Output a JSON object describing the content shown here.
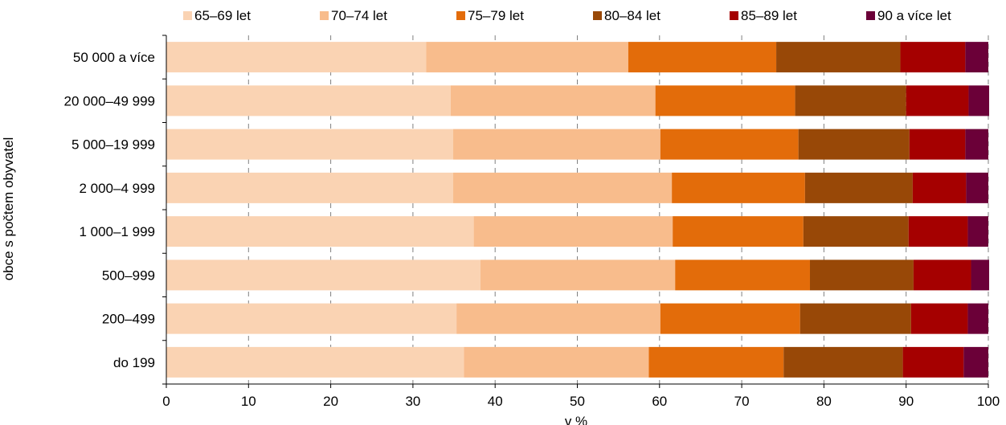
{
  "chart_data": {
    "type": "bar",
    "orientation": "horizontal",
    "stacked": true,
    "title": "",
    "xlabel": "v %",
    "ylabel": "obce s počtem obyvatel",
    "xlim": [
      0,
      100
    ],
    "xticks": [
      0,
      10,
      20,
      30,
      40,
      50,
      60,
      70,
      80,
      90,
      100
    ],
    "grid": "vertical dashed",
    "legend_position": "top",
    "categories": [
      "50 000 a více",
      "20 000–49 999",
      "5 000–19 999",
      "2 000–4 999",
      "1 000–1 999",
      "500–999",
      "200–499",
      "do 199"
    ],
    "series": [
      {
        "name": "65–69 let",
        "color": "#fad3b3",
        "values": [
          31.6,
          34.6,
          34.9,
          34.9,
          37.4,
          38.2,
          35.3,
          36.2
        ]
      },
      {
        "name": "70–74 let",
        "color": "#f8bc8c",
        "values": [
          24.6,
          24.9,
          25.2,
          26.6,
          24.2,
          23.7,
          24.8,
          22.5
        ]
      },
      {
        "name": "75–79 let",
        "color": "#e36c0a",
        "values": [
          18.0,
          17.0,
          16.8,
          16.2,
          15.9,
          16.4,
          17.0,
          16.4
        ]
      },
      {
        "name": "80–84 let",
        "color": "#984807",
        "values": [
          15.1,
          13.5,
          13.5,
          13.1,
          12.8,
          12.6,
          13.5,
          14.5
        ]
      },
      {
        "name": "85–89 let",
        "color": "#a50000",
        "values": [
          7.9,
          7.6,
          6.8,
          6.5,
          7.2,
          7.0,
          6.9,
          7.4
        ]
      },
      {
        "name": "90 a více let",
        "color": "#6b0038",
        "values": [
          2.8,
          2.5,
          2.8,
          2.7,
          2.5,
          2.2,
          2.5,
          3.0
        ]
      }
    ]
  }
}
